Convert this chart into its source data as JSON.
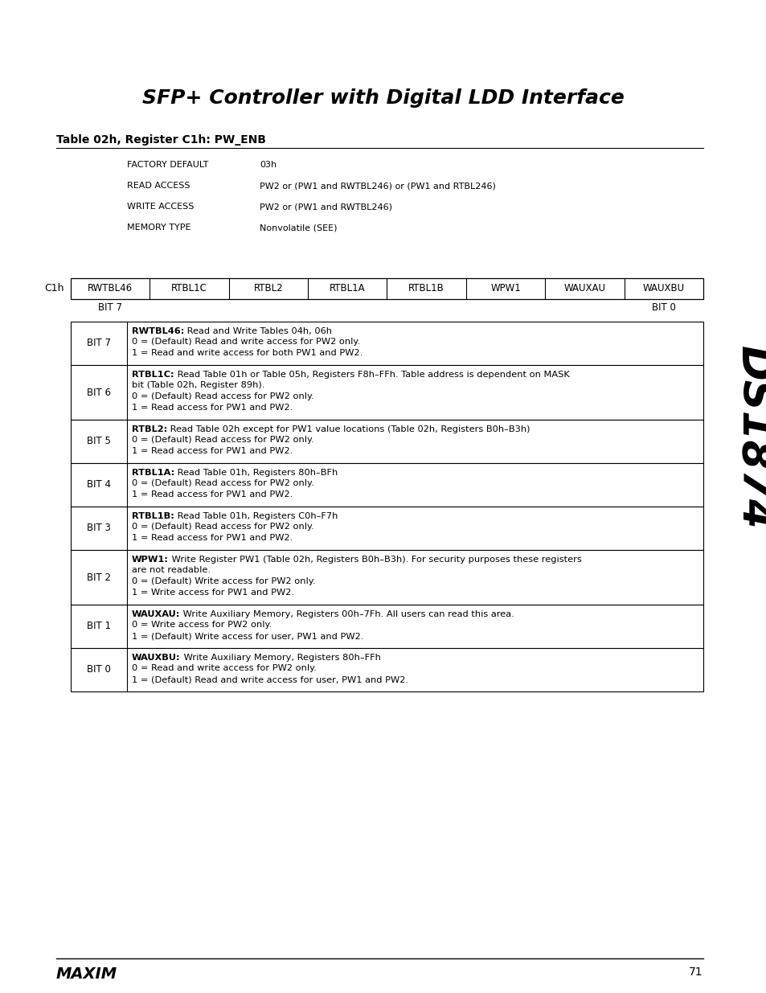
{
  "title": "SFP+ Controller with Digital LDD Interface",
  "subtitle": "Table 02h, Register C1h: PW_ENB",
  "side_text": "DS1874",
  "factory_default_label": "FACTORY DEFAULT",
  "factory_default_value": "03h",
  "read_access_label": "READ ACCESS",
  "read_access_value": "PW2 or (PW1 and RWTBL246) or (PW1 and RTBL246)",
  "write_access_label": "WRITE ACCESS",
  "write_access_value": "PW2 or (PW1 and RWTBL246)",
  "memory_type_label": "MEMORY TYPE",
  "memory_type_value": "Nonvolatile (SEE)",
  "register_label": "C1h",
  "bit_fields": [
    "RWTBL46",
    "RTBL1C",
    "RTBL2",
    "RTBL1A",
    "RTBL1B",
    "WPW1",
    "WAUXAU",
    "WAUXBU"
  ],
  "bit7_label": "BIT 7",
  "bit0_label": "BIT 0",
  "descriptions": [
    {
      "bit": "BIT 7",
      "bold_prefix": "RWTBL46:",
      "line1_rest": " Read and Write Tables 04h, 06h",
      "extra_lines": [
        "0 = (Default) Read and write access for PW2 only.",
        "1 = Read and write access for both PW1 and PW2."
      ]
    },
    {
      "bit": "BIT 6",
      "bold_prefix": "RTBL1C:",
      "line1_rest": " Read Table 01h or Table 05h, Registers F8h–FFh. Table address is dependent on MASK",
      "extra_lines": [
        "bit (Table 02h, Register 89h).",
        "0 = (Default) Read access for PW2 only.",
        "1 = Read access for PW1 and PW2."
      ]
    },
    {
      "bit": "BIT 5",
      "bold_prefix": "RTBL2:",
      "line1_rest": " Read Table 02h except for PW1 value locations (Table 02h, Registers B0h–B3h)",
      "extra_lines": [
        "0 = (Default) Read access for PW2 only.",
        "1 = Read access for PW1 and PW2."
      ]
    },
    {
      "bit": "BIT 4",
      "bold_prefix": "RTBL1A:",
      "line1_rest": " Read Table 01h, Registers 80h–BFh",
      "extra_lines": [
        "0 = (Default) Read access for PW2 only.",
        "1 = Read access for PW1 and PW2."
      ]
    },
    {
      "bit": "BIT 3",
      "bold_prefix": "RTBL1B:",
      "line1_rest": " Read Table 01h, Registers C0h–F7h",
      "extra_lines": [
        "0 = (Default) Read access for PW2 only.",
        "1 = Read access for PW1 and PW2."
      ]
    },
    {
      "bit": "BIT 2",
      "bold_prefix": "WPW1:",
      "line1_rest": " Write Register PW1 (Table 02h, Registers B0h–B3h). For security purposes these registers",
      "extra_lines": [
        "are not readable.",
        "0 = (Default) Write access for PW2 only.",
        "1 = Write access for PW1 and PW2."
      ]
    },
    {
      "bit": "BIT 1",
      "bold_prefix": "WAUXAU:",
      "line1_rest": " Write Auxiliary Memory, Registers 00h–7Fh. All users can read this area.",
      "extra_lines": [
        "0 = Write access for PW2 only.",
        "1 = (Default) Write access for user, PW1 and PW2."
      ]
    },
    {
      "bit": "BIT 0",
      "bold_prefix": "WAUXBU:",
      "line1_rest": " Write Auxiliary Memory, Registers 80h–FFh",
      "extra_lines": [
        "0 = Read and write access for PW2 only.",
        "1 = (Default) Read and write access for user, PW1 and PW2."
      ]
    }
  ],
  "page_number": "71",
  "bg_color": "#ffffff",
  "text_color": "#000000"
}
